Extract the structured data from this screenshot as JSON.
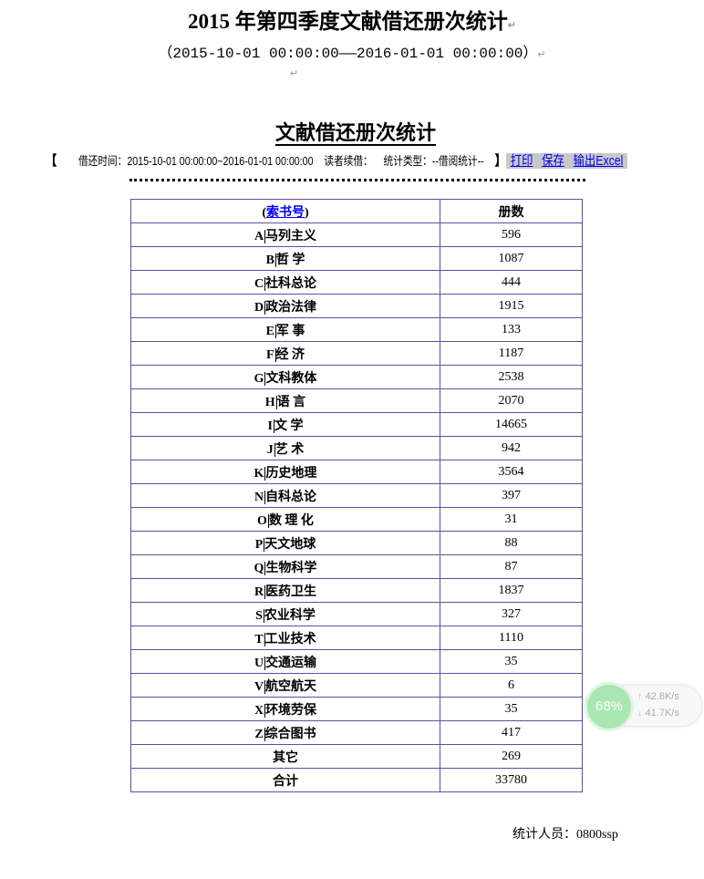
{
  "doc": {
    "title": "2015 年第四季度文献借还册次统计",
    "range": "（2015-10-01 00:00:00——2016-01-01 00:00:00）",
    "para_mark": "↵"
  },
  "report": {
    "title": "文献借还册次统计",
    "bracket_open": "【",
    "bracket_close": "】",
    "time_label": "借还时间：2015-10-01 00:00:00~2016-01-01 00:00:00",
    "renew_label": "读者续借：",
    "type_label": "统计类型：--借阅统计--",
    "actions": {
      "print": "打印",
      "save": "保存",
      "export": "输出Excel"
    },
    "table": {
      "headers": {
        "call_number_open": "(",
        "call_number": "索书号",
        "call_number_close": ")",
        "count": "册数"
      },
      "rows": [
        {
          "code": "A",
          "name": "马列主义",
          "count": "596"
        },
        {
          "code": "B",
          "name": "哲 学",
          "count": "1087"
        },
        {
          "code": "C",
          "name": "社科总论",
          "count": "444"
        },
        {
          "code": "D",
          "name": "政治法律",
          "count": "1915"
        },
        {
          "code": "E",
          "name": "军 事",
          "count": "133"
        },
        {
          "code": "F",
          "name": "经 济",
          "count": "1187"
        },
        {
          "code": "G",
          "name": "文科教体",
          "count": "2538"
        },
        {
          "code": "H",
          "name": "语 言",
          "count": "2070"
        },
        {
          "code": "I",
          "name": "文 学",
          "count": "14665"
        },
        {
          "code": "J",
          "name": "艺 术",
          "count": "942"
        },
        {
          "code": "K",
          "name": "历史地理",
          "count": "3564"
        },
        {
          "code": "N",
          "name": "自科总论",
          "count": "397"
        },
        {
          "code": "O",
          "name": "数 理 化",
          "count": "31"
        },
        {
          "code": "P",
          "name": "天文地球",
          "count": "88"
        },
        {
          "code": "Q",
          "name": "生物科学",
          "count": "87"
        },
        {
          "code": "R",
          "name": "医药卫生",
          "count": "1837"
        },
        {
          "code": "S",
          "name": "农业科学",
          "count": "327"
        },
        {
          "code": "T",
          "name": "工业技术",
          "count": "1110"
        },
        {
          "code": "U",
          "name": "交通运输",
          "count": "35"
        },
        {
          "code": "V",
          "name": "航空航天",
          "count": "6"
        },
        {
          "code": "X",
          "name": "环境劳保",
          "count": "35"
        },
        {
          "code": "Z",
          "name": "综合图书",
          "count": "417"
        }
      ],
      "other": {
        "name": "其它",
        "count": "269"
      },
      "total": {
        "name": "合计",
        "count": "33780"
      }
    },
    "footer": "统计人员：0800ssp"
  },
  "widget": {
    "percent": "68%",
    "upload": "42.8K/s",
    "download": "41.7K/s",
    "up_color": "#f4a0a0",
    "down_color": "#9fd6a8"
  }
}
